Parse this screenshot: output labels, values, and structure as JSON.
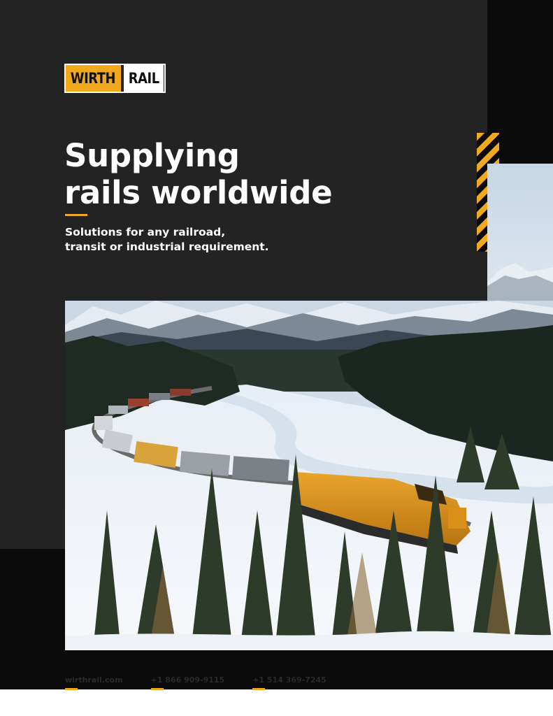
{
  "brand": {
    "name_left": "WIRTH",
    "name_right": "RAIL",
    "accent_color": "#f0a81d"
  },
  "hero": {
    "headline_line1": "Supplying",
    "headline_line2": "rails worldwide",
    "subhead_line1": "Solutions for any railroad,",
    "subhead_line2": "transit or industrial requirement."
  },
  "image": {
    "subject": "freight-train-winter-mountains"
  },
  "footer": {
    "website": "wirthrail.com",
    "phone_1": "+1 866 909-9115",
    "phone_2": "+1 514 369-7245"
  }
}
